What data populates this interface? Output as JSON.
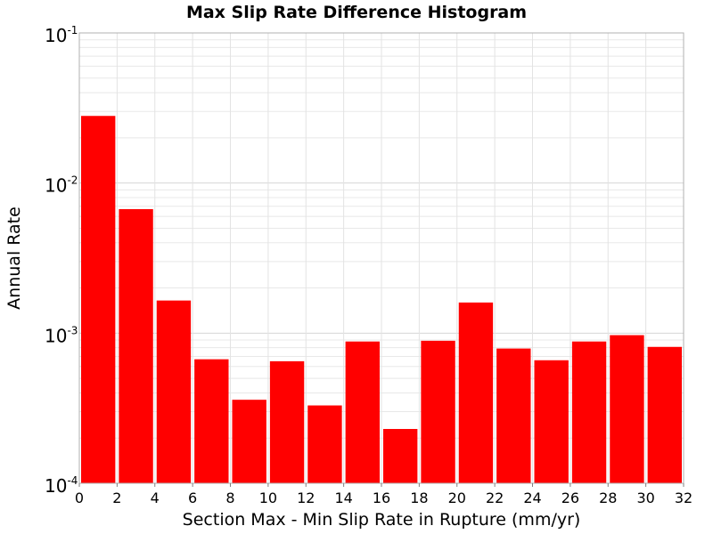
{
  "chart_data": {
    "type": "bar",
    "title": "Max Slip Rate Difference Histogram",
    "xlabel": "Section Max - Min Slip Rate in Rupture (mm/yr)",
    "ylabel": "Annual Rate",
    "xlim": [
      0,
      32
    ],
    "ylim": [
      0.0001,
      0.1
    ],
    "yscale": "log",
    "grid": true,
    "bar_color": "#ff0000",
    "x_ticks": [
      "0",
      "2",
      "4",
      "6",
      "8",
      "10",
      "12",
      "14",
      "16",
      "18",
      "20",
      "22",
      "24",
      "26",
      "28",
      "30",
      "32"
    ],
    "y_ticks": [
      {
        "base": "10",
        "exp": "-4",
        "value": 0.0001
      },
      {
        "base": "10",
        "exp": "-3",
        "value": 0.001
      },
      {
        "base": "10",
        "exp": "-2",
        "value": 0.01
      },
      {
        "base": "10",
        "exp": "-1",
        "value": 0.1
      }
    ],
    "bins": [
      {
        "x0": 0,
        "x1": 2,
        "value": 0.028
      },
      {
        "x0": 2,
        "x1": 4,
        "value": 0.0067
      },
      {
        "x0": 4,
        "x1": 6,
        "value": 0.00165
      },
      {
        "x0": 6,
        "x1": 8,
        "value": 0.00067
      },
      {
        "x0": 8,
        "x1": 10,
        "value": 0.00036
      },
      {
        "x0": 10,
        "x1": 12,
        "value": 0.00065
      },
      {
        "x0": 12,
        "x1": 14,
        "value": 0.00033
      },
      {
        "x0": 14,
        "x1": 16,
        "value": 0.00088
      },
      {
        "x0": 16,
        "x1": 18,
        "value": 0.00023
      },
      {
        "x0": 18,
        "x1": 20,
        "value": 0.00089
      },
      {
        "x0": 20,
        "x1": 22,
        "value": 0.0016
      },
      {
        "x0": 22,
        "x1": 24,
        "value": 0.00079
      },
      {
        "x0": 24,
        "x1": 26,
        "value": 0.00066
      },
      {
        "x0": 26,
        "x1": 28,
        "value": 0.00088
      },
      {
        "x0": 28,
        "x1": 30,
        "value": 0.00097
      },
      {
        "x0": 30,
        "x1": 32,
        "value": 0.00081
      }
    ]
  }
}
